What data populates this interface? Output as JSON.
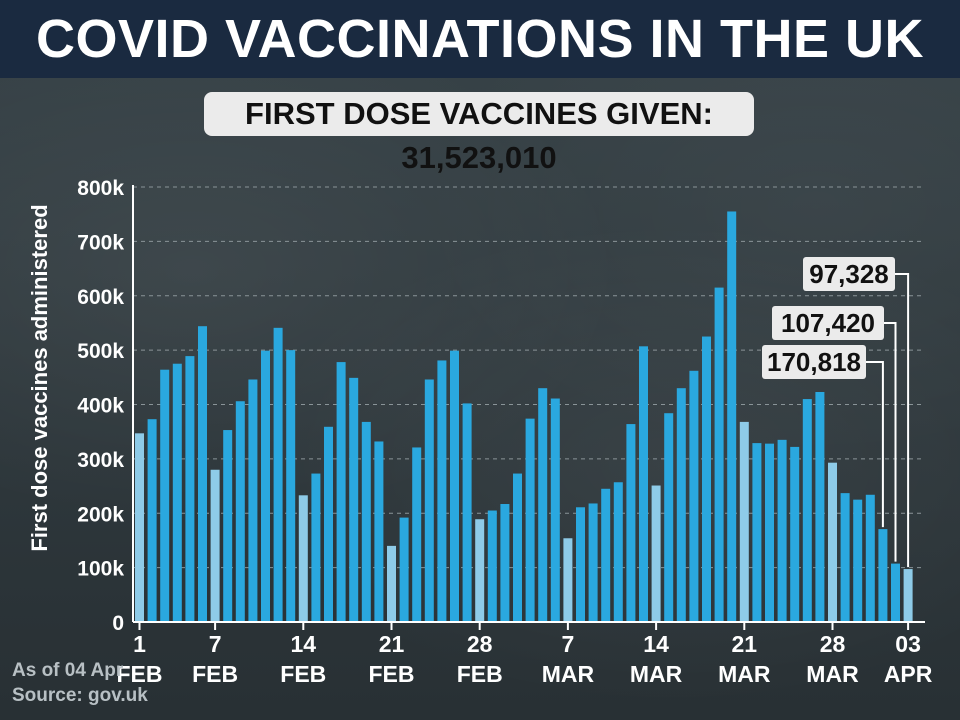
{
  "header": {
    "title": "COVID VACCINATIONS IN THE UK",
    "subtitle": "FIRST DOSE VACCINES GIVEN: 31,523,010"
  },
  "footer": {
    "as_of": "As of 04 Apr",
    "source": "Source: gov.uk"
  },
  "colors": {
    "bar": "#2aa8df",
    "bar_light": "#8ecbe8",
    "grid": "#8a9498",
    "text": "#ffffff"
  },
  "chart_data": {
    "type": "bar",
    "title": "FIRST DOSE VACCINES GIVEN: 31,523,010",
    "ylabel": "First dose vaccines administered",
    "xlabel": "",
    "ylim": [
      0,
      800000
    ],
    "yticks": [
      {
        "value": 0,
        "label": "0"
      },
      {
        "value": 100000,
        "label": "100k"
      },
      {
        "value": 200000,
        "label": "200k"
      },
      {
        "value": 300000,
        "label": "300k"
      },
      {
        "value": 400000,
        "label": "400k"
      },
      {
        "value": 500000,
        "label": "500k"
      },
      {
        "value": 600000,
        "label": "600k"
      },
      {
        "value": 700000,
        "label": "700k"
      },
      {
        "value": 800000,
        "label": "800k"
      }
    ],
    "grid": true,
    "xticks": [
      {
        "index": 0,
        "day": "1",
        "month": "FEB"
      },
      {
        "index": 6,
        "day": "7",
        "month": "FEB"
      },
      {
        "index": 13,
        "day": "14",
        "month": "FEB"
      },
      {
        "index": 20,
        "day": "21",
        "month": "FEB"
      },
      {
        "index": 27,
        "day": "28",
        "month": "FEB"
      },
      {
        "index": 34,
        "day": "7",
        "month": "MAR"
      },
      {
        "index": 41,
        "day": "14",
        "month": "MAR"
      },
      {
        "index": 48,
        "day": "21",
        "month": "MAR"
      },
      {
        "index": 55,
        "day": "28",
        "month": "MAR"
      },
      {
        "index": 61,
        "day": "03",
        "month": "APR"
      }
    ],
    "values": [
      347000,
      373000,
      464000,
      475000,
      489000,
      544000,
      280000,
      353000,
      406000,
      446000,
      499000,
      541000,
      500000,
      233000,
      273000,
      359000,
      478000,
      449000,
      368000,
      332000,
      140000,
      192000,
      321000,
      446000,
      481000,
      499000,
      402000,
      189000,
      205000,
      217000,
      273000,
      374000,
      430000,
      411000,
      154000,
      211000,
      218000,
      245000,
      257000,
      364000,
      507000,
      251000,
      384000,
      430000,
      462000,
      525000,
      615000,
      755000,
      368000,
      329000,
      328000,
      335000,
      322000,
      410000,
      423000,
      293000,
      237000,
      225000,
      234000,
      170818,
      107420,
      97328
    ],
    "light_indices": [
      0,
      6,
      13,
      20,
      27,
      34,
      41,
      48,
      55,
      61
    ],
    "annotations": [
      {
        "index": 59,
        "label": "170,818"
      },
      {
        "index": 60,
        "label": "107,420"
      },
      {
        "index": 61,
        "label": "97,328"
      }
    ]
  }
}
